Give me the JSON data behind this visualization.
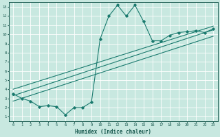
{
  "xlabel": "Humidex (Indice chaleur)",
  "xlim": [
    -0.5,
    23.5
  ],
  "ylim": [
    0.5,
    13.5
  ],
  "xticks": [
    0,
    1,
    2,
    3,
    4,
    5,
    6,
    7,
    8,
    9,
    10,
    11,
    12,
    13,
    14,
    15,
    16,
    17,
    18,
    19,
    20,
    21,
    22,
    23
  ],
  "yticks": [
    1,
    2,
    3,
    4,
    5,
    6,
    7,
    8,
    9,
    10,
    11,
    12,
    13
  ],
  "bg_color": "#c8e8e0",
  "grid_color": "#ffffff",
  "line_color": "#1a7a6e",
  "main_x": [
    0,
    1,
    2,
    3,
    4,
    5,
    6,
    7,
    8,
    9,
    10,
    11,
    12,
    13,
    14,
    15,
    16,
    17,
    18,
    19,
    20,
    21,
    22,
    23
  ],
  "main_y": [
    3.5,
    3.0,
    2.7,
    2.1,
    2.2,
    2.1,
    1.2,
    2.0,
    2.0,
    2.6,
    9.5,
    12.0,
    13.2,
    12.0,
    13.2,
    11.4,
    9.3,
    9.3,
    9.9,
    10.2,
    10.3,
    10.4,
    10.2,
    10.6
  ],
  "line1_x": [
    0,
    23
  ],
  "line1_y": [
    3.3,
    10.5
  ],
  "line2_x": [
    0,
    23
  ],
  "line2_y": [
    2.7,
    9.8
  ],
  "line3_x": [
    0,
    23
  ],
  "line3_y": [
    4.0,
    10.9
  ]
}
